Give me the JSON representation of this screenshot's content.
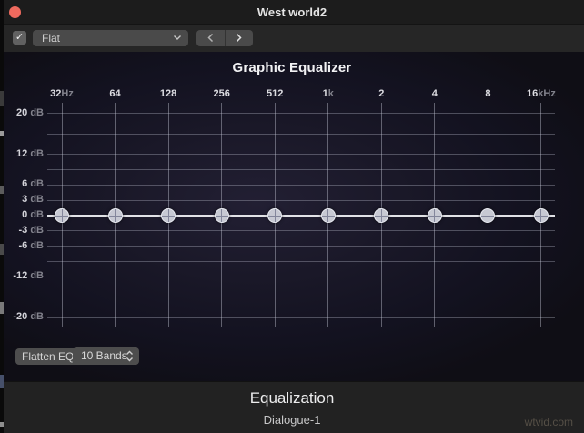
{
  "window": {
    "title": "West world2"
  },
  "toolbar": {
    "eq_enabled": true,
    "checkbox_glyph": "✓",
    "preset_value": "Flat",
    "prev_icon": "chevron-left",
    "next_icon": "chevron-right"
  },
  "equalizer": {
    "title": "Graphic Equalizer",
    "bands": [
      {
        "num": "32",
        "unit": "Hz",
        "gain_db": 0
      },
      {
        "num": "64",
        "unit": "",
        "gain_db": 0
      },
      {
        "num": "128",
        "unit": "",
        "gain_db": 0
      },
      {
        "num": "256",
        "unit": "",
        "gain_db": 0
      },
      {
        "num": "512",
        "unit": "",
        "gain_db": 0
      },
      {
        "num": "1",
        "unit": "k",
        "gain_db": 0
      },
      {
        "num": "2",
        "unit": "",
        "gain_db": 0
      },
      {
        "num": "4",
        "unit": "",
        "gain_db": 0
      },
      {
        "num": "8",
        "unit": "",
        "gain_db": 0
      },
      {
        "num": "16",
        "unit": "kHz",
        "gain_db": 0
      }
    ],
    "db_scale": [
      {
        "db": 20,
        "labeled": true
      },
      {
        "db": 16,
        "labeled": false
      },
      {
        "db": 12,
        "labeled": true
      },
      {
        "db": 9,
        "labeled": false
      },
      {
        "db": 6,
        "labeled": true
      },
      {
        "db": 3,
        "labeled": true
      },
      {
        "db": 0,
        "labeled": true
      },
      {
        "db": -3,
        "labeled": true
      },
      {
        "db": -6,
        "labeled": true
      },
      {
        "db": -9,
        "labeled": false
      },
      {
        "db": -12,
        "labeled": true
      },
      {
        "db": -16,
        "labeled": false
      },
      {
        "db": -20,
        "labeled": true
      }
    ],
    "db_unit": "dB",
    "flatten_label": "Flatten EQ",
    "bands_count_label": "10 Bands"
  },
  "footer": {
    "title": "Equalization",
    "subtitle": "Dialogue-1",
    "watermark": "wtvid.com"
  },
  "colors": {
    "close_button": "#ee6a5e",
    "grid_line": "#cacedc",
    "knob_fill": "#c7c9d3",
    "panel_glow": "#221f33"
  }
}
